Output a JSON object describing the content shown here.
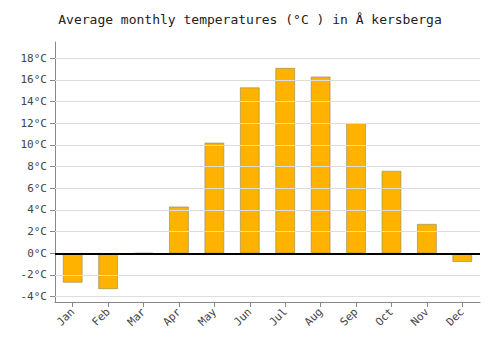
{
  "chart_data": {
    "type": "bar",
    "title": "Average monthly temperatures (°C ) in Å kersberga",
    "categories": [
      "Jan",
      "Feb",
      "Mar",
      "Apr",
      "May",
      "Jun",
      "Jul",
      "Aug",
      "Sep",
      "Oct",
      "Nov",
      "Dec"
    ],
    "values": [
      -2.7,
      -3.3,
      0.0,
      4.3,
      10.2,
      15.3,
      17.1,
      16.3,
      12.0,
      7.6,
      2.7,
      -0.8
    ],
    "color": "#FFB300",
    "ylim": [
      -4.5,
      19.5
    ],
    "yticks": [
      {
        "value": -4,
        "label": "-4°C"
      },
      {
        "value": -2,
        "label": "-2°C"
      },
      {
        "value": 0,
        "label": "0°C"
      },
      {
        "value": 2,
        "label": "2°C"
      },
      {
        "value": 4,
        "label": "4°C"
      },
      {
        "value": 6,
        "label": "6°C"
      },
      {
        "value": 8,
        "label": "8°C"
      },
      {
        "value": 10,
        "label": "10°C"
      },
      {
        "value": 12,
        "label": "12°C"
      },
      {
        "value": 14,
        "label": "14°C"
      },
      {
        "value": 16,
        "label": "16°C"
      },
      {
        "value": 18,
        "label": "18°C"
      }
    ],
    "grid": true
  }
}
